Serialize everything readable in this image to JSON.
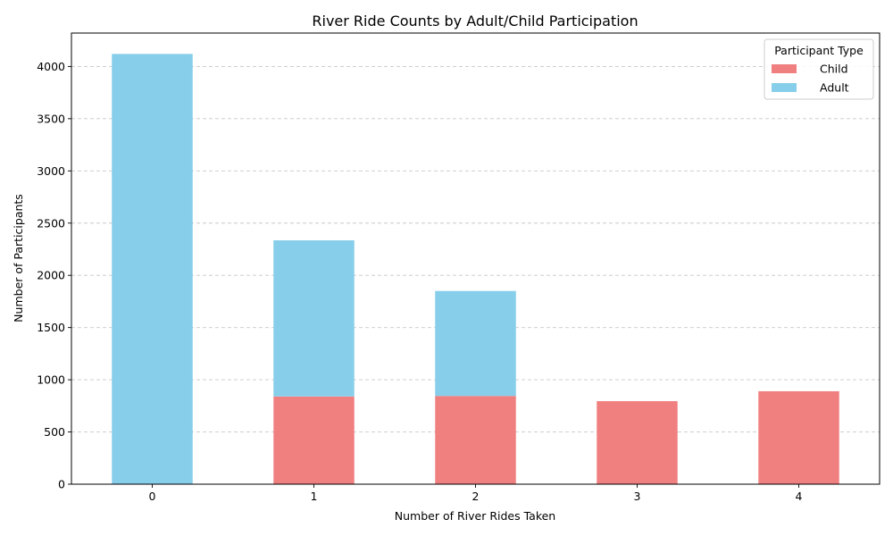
{
  "chart_data": {
    "type": "bar",
    "stacked": true,
    "title": "River Ride Counts by Adult/Child Participation",
    "xlabel": "Number of River Rides Taken",
    "ylabel": "Number of Participants",
    "categories": [
      "0",
      "1",
      "2",
      "3",
      "4"
    ],
    "ylim": [
      0,
      4320
    ],
    "yticks": [
      0,
      500,
      1000,
      1500,
      2000,
      2500,
      3000,
      3500,
      4000
    ],
    "grid": "y-dashed",
    "legend": {
      "title": "Participant Type",
      "placement": "top-right"
    },
    "series": [
      {
        "name": "Child",
        "color": "#f08080",
        "values": [
          0,
          840,
          845,
          795,
          890
        ]
      },
      {
        "name": "Adult",
        "color": "#87ceeb",
        "values": [
          4120,
          1495,
          1005,
          0,
          0
        ]
      }
    ]
  }
}
